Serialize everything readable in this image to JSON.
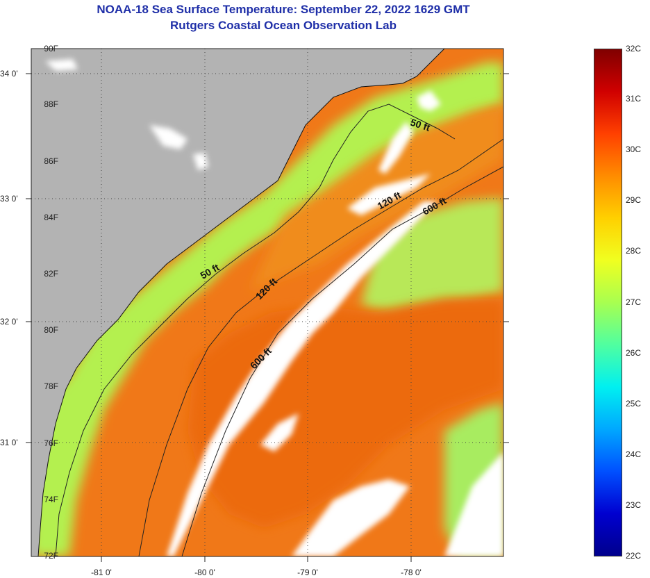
{
  "title": {
    "line1": "NOAA-18 Sea Surface Temperature:  September 22, 2022 1629 GMT",
    "line2": "Rutgers Coastal Ocean Observation Lab"
  },
  "map": {
    "longitude_labels": [
      "-81 0'",
      "-80 0'",
      "-79 0'",
      "-78 0'"
    ],
    "latitude_labels": [
      "34 0'",
      "33 0'",
      "32 0'",
      "31 0'"
    ],
    "contour_labels": [
      "50 ft",
      "50 ft",
      "120 ft",
      "120 ft",
      "600 ft",
      "600 ft"
    ],
    "land_color": "#b3b3b3",
    "cloud_color": "#ffffff",
    "warm_water_color": "#f07818",
    "cool_water_color": "#b4f050"
  },
  "colorbar": {
    "fahrenheit_labels": [
      "90F",
      "88F",
      "86F",
      "84F",
      "82F",
      "80F",
      "78F",
      "76F",
      "74F",
      "72F"
    ],
    "celsius_labels": [
      "32C",
      "31C",
      "30C",
      "29C",
      "28C",
      "27C",
      "26C",
      "25C",
      "24C",
      "23C",
      "22C"
    ],
    "gradient_stops": [
      "#800000",
      "#d00000",
      "#ff4000",
      "#ff8c00",
      "#ffd000",
      "#f0ff20",
      "#a8ff50",
      "#50ffa0",
      "#00f0f0",
      "#00a8ff",
      "#0050ff",
      "#0000d0",
      "#00008c"
    ]
  }
}
